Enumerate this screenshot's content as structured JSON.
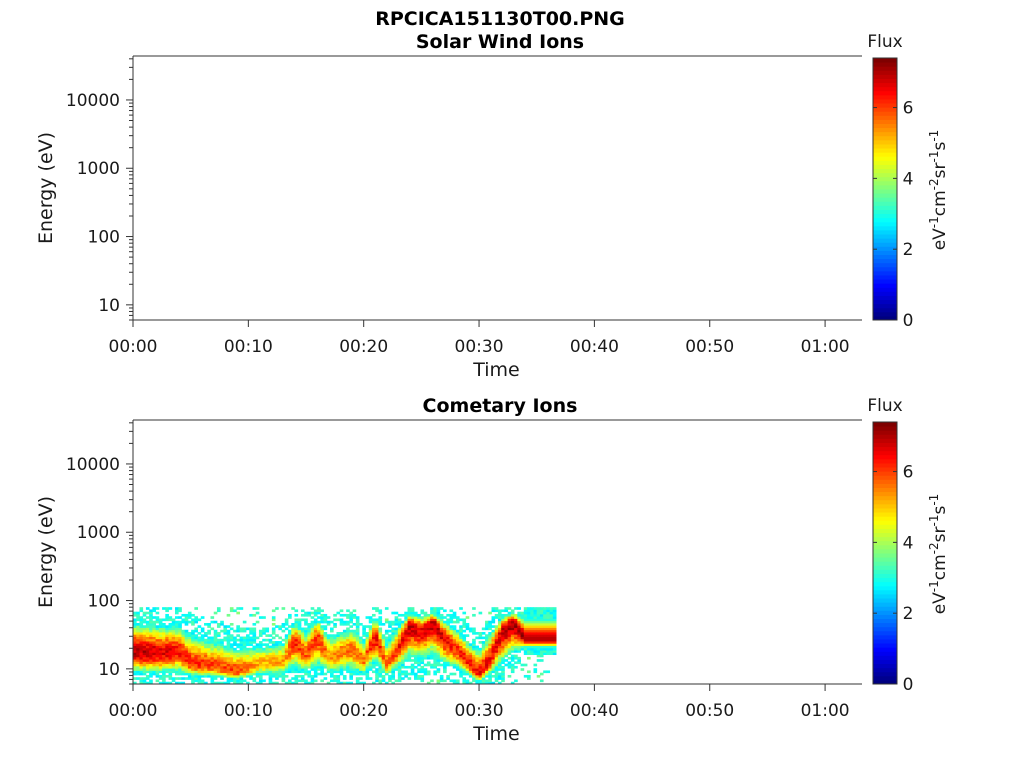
{
  "figure_title": "RPCICA151130T00.PNG",
  "colormap": [
    "#00007f",
    "#0000ff",
    "#007fff",
    "#00ffff",
    "#7fff7f",
    "#ffff00",
    "#ff7f00",
    "#ff0000",
    "#7f0000"
  ],
  "chart_data": [
    {
      "type": "heatmap",
      "title": "Solar Wind Ions",
      "xlabel": "Time",
      "ylabel": "Energy (eV)",
      "x_ticks": [
        "00:00",
        "00:10",
        "00:20",
        "00:30",
        "00:40",
        "00:50",
        "01:00"
      ],
      "x_tick_minutes": [
        0,
        10,
        20,
        30,
        40,
        50,
        60
      ],
      "xlim_minutes": [
        0,
        63.2
      ],
      "y_scale": "log",
      "y_ticks": [
        "10",
        "100",
        "1000",
        "10000"
      ],
      "y_tick_values": [
        10,
        100,
        1000,
        10000
      ],
      "ylim": [
        6,
        44000
      ],
      "colorbar_title": "Flux",
      "colorbar_label": "eV-1cm-2sr-1s-1",
      "colorbar_ticks": [
        "0",
        "2",
        "4",
        "6"
      ],
      "colorbar_tick_values": [
        0,
        2,
        4,
        6
      ],
      "clim": [
        0,
        7.4
      ],
      "bands": []
    },
    {
      "type": "heatmap",
      "title": "Cometary Ions",
      "xlabel": "Time",
      "ylabel": "Energy (eV)",
      "x_ticks": [
        "00:00",
        "00:10",
        "00:20",
        "00:30",
        "00:40",
        "00:50",
        "01:00"
      ],
      "x_tick_minutes": [
        0,
        10,
        20,
        30,
        40,
        50,
        60
      ],
      "xlim_minutes": [
        0,
        63.2
      ],
      "y_scale": "log",
      "y_ticks": [
        "10",
        "100",
        "1000",
        "10000"
      ],
      "y_tick_values": [
        10,
        100,
        1000,
        10000
      ],
      "ylim": [
        6,
        44000
      ],
      "colorbar_title": "Flux",
      "colorbar_label": "eV-1cm-2sr-1s-1",
      "colorbar_ticks": [
        "0",
        "2",
        "4",
        "6"
      ],
      "colorbar_tick_values": [
        0,
        2,
        4,
        6
      ],
      "clim": [
        0,
        7.4
      ],
      "data_extent_minutes": [
        0,
        36.6
      ],
      "energy_range_eV": [
        6,
        80
      ],
      "bands": [
        {
          "minute": 0,
          "e_low": 6,
          "e_peak": 18,
          "e_high": 80,
          "peak_flux": 7.0
        },
        {
          "minute": 2,
          "e_low": 6,
          "e_peak": 17,
          "e_high": 75,
          "peak_flux": 6.8
        },
        {
          "minute": 4,
          "e_low": 6,
          "e_peak": 18,
          "e_high": 70,
          "peak_flux": 6.5
        },
        {
          "minute": 5,
          "e_low": 6,
          "e_peak": 12,
          "e_high": 60,
          "peak_flux": 6.2
        },
        {
          "minute": 7,
          "e_low": 6,
          "e_peak": 11,
          "e_high": 45,
          "peak_flux": 6.0
        },
        {
          "minute": 9,
          "e_low": 6,
          "e_peak": 9,
          "e_high": 35,
          "peak_flux": 6.0
        },
        {
          "minute": 11,
          "e_low": 6,
          "e_peak": 12,
          "e_high": 35,
          "peak_flux": 5.2
        },
        {
          "minute": 13,
          "e_low": 6,
          "e_peak": 13,
          "e_high": 40,
          "peak_flux": 5.2
        },
        {
          "minute": 14,
          "e_low": 6,
          "e_peak": 26,
          "e_high": 75,
          "peak_flux": 6.3
        },
        {
          "minute": 15,
          "e_low": 6,
          "e_peak": 16,
          "e_high": 60,
          "peak_flux": 5.8
        },
        {
          "minute": 16,
          "e_low": 6,
          "e_peak": 30,
          "e_high": 80,
          "peak_flux": 6.3
        },
        {
          "minute": 17,
          "e_low": 6,
          "e_peak": 15,
          "e_high": 50,
          "peak_flux": 5.4
        },
        {
          "minute": 19,
          "e_low": 6,
          "e_peak": 20,
          "e_high": 60,
          "peak_flux": 5.8
        },
        {
          "minute": 20,
          "e_low": 6,
          "e_peak": 13,
          "e_high": 45,
          "peak_flux": 5.6
        },
        {
          "minute": 21,
          "e_low": 7,
          "e_peak": 32,
          "e_high": 80,
          "peak_flux": 6.6
        },
        {
          "minute": 22,
          "e_low": 6,
          "e_peak": 12,
          "e_high": 40,
          "peak_flux": 5.7
        },
        {
          "minute": 23,
          "e_low": 7,
          "e_peak": 20,
          "e_high": 65,
          "peak_flux": 6.3
        },
        {
          "minute": 24,
          "e_low": 8,
          "e_peak": 45,
          "e_high": 80,
          "peak_flux": 7.0
        },
        {
          "minute": 25,
          "e_low": 8,
          "e_peak": 35,
          "e_high": 80,
          "peak_flux": 6.6
        },
        {
          "minute": 26,
          "e_low": 9,
          "e_peak": 50,
          "e_high": 80,
          "peak_flux": 7.0
        },
        {
          "minute": 27,
          "e_low": 7,
          "e_peak": 28,
          "e_high": 75,
          "peak_flux": 6.6
        },
        {
          "minute": 28,
          "e_low": 7,
          "e_peak": 20,
          "e_high": 60,
          "peak_flux": 6.2
        },
        {
          "minute": 29,
          "e_low": 6,
          "e_peak": 13,
          "e_high": 40,
          "peak_flux": 6.3
        },
        {
          "minute": 30,
          "e_low": 6,
          "e_peak": 8,
          "e_high": 30,
          "peak_flux": 6.6
        },
        {
          "minute": 31,
          "e_low": 6,
          "e_peak": 14,
          "e_high": 60,
          "peak_flux": 6.4
        },
        {
          "minute": 32,
          "e_low": 7,
          "e_peak": 35,
          "e_high": 80,
          "peak_flux": 6.9
        },
        {
          "minute": 33,
          "e_low": 10,
          "e_peak": 50,
          "e_high": 80,
          "peak_flux": 7.2
        },
        {
          "minute": 34,
          "e_low": 18,
          "e_peak": 27,
          "e_high": 80,
          "peak_flux": 7.0
        },
        {
          "minute": 36.6,
          "e_low": 18,
          "e_peak": 27,
          "e_high": 80,
          "peak_flux": 7.0
        }
      ]
    }
  ]
}
